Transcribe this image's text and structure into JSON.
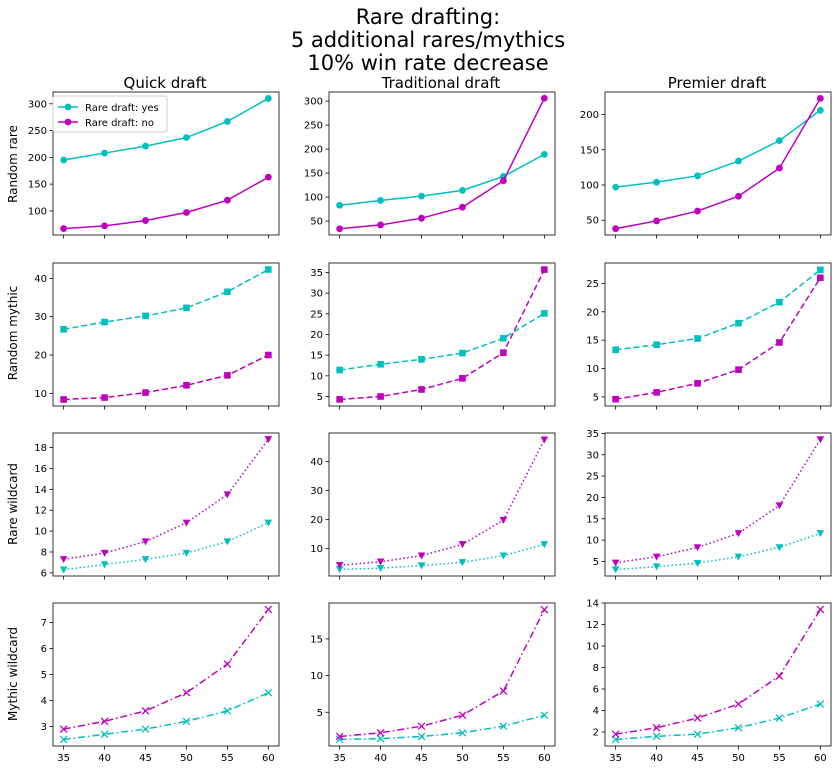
{
  "figure": {
    "title_lines": [
      "Rare drafting:",
      "5 additional rares/mythics",
      "10% win rate decrease"
    ],
    "column_titles": [
      "Quick draft",
      "Traditional draft",
      "Premier draft"
    ],
    "row_labels": [
      "Random rare",
      "Random mythic",
      "Rare wildcard",
      "Mythic wildcard"
    ]
  },
  "legend": {
    "location": "upper-left of first panel",
    "entries": [
      {
        "label": "Rare draft: yes",
        "color": "#17becf"
      },
      {
        "label": "Rare draft: no",
        "color": "#bf00bf"
      }
    ]
  },
  "style": {
    "colors": {
      "yes": "#00bfbf",
      "no": "#bf00bf"
    },
    "rows": [
      {
        "marker": "circle",
        "dash": "solid"
      },
      {
        "marker": "square",
        "dash": "dashed"
      },
      {
        "marker": "triangle-down",
        "dash": "dotted"
      },
      {
        "marker": "x",
        "dash": "dashdot"
      }
    ]
  },
  "chart_data": [
    {
      "type": "line",
      "row": "Random rare",
      "column": "Quick draft",
      "x": [
        35,
        40,
        45,
        50,
        55,
        60
      ],
      "series": [
        {
          "name": "Rare draft: yes",
          "values": [
            195,
            208,
            221,
            237,
            267,
            310
          ]
        },
        {
          "name": "Rare draft: no",
          "values": [
            67,
            72,
            82,
            97,
            120,
            163
          ]
        }
      ],
      "ylim": [
        55,
        322
      ],
      "yticks": [
        100,
        150,
        200,
        250,
        300
      ]
    },
    {
      "type": "line",
      "row": "Random rare",
      "column": "Traditional draft",
      "x": [
        35,
        40,
        45,
        50,
        55,
        60
      ],
      "series": [
        {
          "name": "Rare draft: yes",
          "values": [
            83,
            93,
            102,
            114,
            143,
            189
          ]
        },
        {
          "name": "Rare draft: no",
          "values": [
            34,
            42,
            56,
            79,
            134,
            306
          ]
        }
      ],
      "ylim": [
        21,
        319
      ],
      "yticks": [
        50,
        100,
        150,
        200,
        250,
        300
      ]
    },
    {
      "type": "line",
      "row": "Random rare",
      "column": "Premier draft",
      "x": [
        35,
        40,
        45,
        50,
        55,
        60
      ],
      "series": [
        {
          "name": "Rare draft: yes",
          "values": [
            97,
            104,
            113,
            134,
            163,
            206
          ]
        },
        {
          "name": "Rare draft: no",
          "values": [
            38,
            49,
            63,
            84,
            124,
            223
          ]
        }
      ],
      "ylim": [
        29,
        232
      ],
      "yticks": [
        50,
        100,
        150,
        200
      ]
    },
    {
      "type": "line",
      "row": "Random mythic",
      "column": "Quick draft",
      "x": [
        35,
        40,
        45,
        50,
        55,
        60
      ],
      "series": [
        {
          "name": "Rare draft: yes",
          "values": [
            26.7,
            28.6,
            30.2,
            32.3,
            36.5,
            42.3
          ]
        },
        {
          "name": "Rare draft: no",
          "values": [
            8.4,
            8.9,
            10.2,
            12.1,
            14.7,
            20.0
          ]
        }
      ],
      "ylim": [
        6.7,
        44.0
      ],
      "yticks": [
        10,
        20,
        30,
        40
      ]
    },
    {
      "type": "line",
      "row": "Random mythic",
      "column": "Traditional draft",
      "x": [
        35,
        40,
        45,
        50,
        55,
        60
      ],
      "series": [
        {
          "name": "Rare draft: yes",
          "values": [
            11.4,
            12.8,
            14.0,
            15.5,
            19.1,
            25.1
          ]
        },
        {
          "name": "Rare draft: no",
          "values": [
            4.3,
            5.0,
            6.7,
            9.4,
            15.6,
            35.7
          ]
        }
      ],
      "ylim": [
        2.7,
        37.3
      ],
      "yticks": [
        5,
        10,
        15,
        20,
        25,
        30,
        35
      ]
    },
    {
      "type": "line",
      "row": "Random mythic",
      "column": "Premier draft",
      "x": [
        35,
        40,
        45,
        50,
        55,
        60
      ],
      "series": [
        {
          "name": "Rare draft: yes",
          "values": [
            13.3,
            14.2,
            15.3,
            18.0,
            21.7,
            27.4
          ]
        },
        {
          "name": "Rare draft: no",
          "values": [
            4.6,
            5.8,
            7.4,
            9.8,
            14.6,
            26.0
          ]
        }
      ],
      "ylim": [
        3.4,
        28.6
      ],
      "yticks": [
        5,
        10,
        15,
        20,
        25
      ]
    },
    {
      "type": "line",
      "row": "Rare wildcard",
      "column": "Quick draft",
      "x": [
        35,
        40,
        45,
        50,
        55,
        60
      ],
      "series": [
        {
          "name": "Rare draft: yes",
          "values": [
            6.3,
            6.8,
            7.3,
            7.9,
            9.0,
            10.8
          ]
        },
        {
          "name": "Rare draft: no",
          "values": [
            7.3,
            7.9,
            9.0,
            10.8,
            13.5,
            18.8
          ]
        }
      ],
      "ylim": [
        5.7,
        19.4
      ],
      "yticks": [
        6,
        8,
        10,
        12,
        14,
        16,
        18
      ]
    },
    {
      "type": "line",
      "row": "Rare wildcard",
      "column": "Traditional draft",
      "x": [
        35,
        40,
        45,
        50,
        55,
        60
      ],
      "series": [
        {
          "name": "Rare draft: yes",
          "values": [
            2.9,
            3.3,
            4.2,
            5.3,
            7.6,
            11.5
          ]
        },
        {
          "name": "Rare draft: no",
          "values": [
            4.3,
            5.5,
            7.6,
            11.5,
            19.8,
            47.5
          ]
        }
      ],
      "ylim": [
        0.6,
        49.8
      ],
      "yticks": [
        10,
        20,
        30,
        40
      ]
    },
    {
      "type": "line",
      "row": "Rare wildcard",
      "column": "Premier draft",
      "x": [
        35,
        40,
        45,
        50,
        55,
        60
      ],
      "series": [
        {
          "name": "Rare draft: yes",
          "values": [
            3.1,
            3.8,
            4.6,
            6.1,
            8.3,
            11.6
          ]
        },
        {
          "name": "Rare draft: no",
          "values": [
            4.7,
            6.1,
            8.3,
            11.6,
            18.1,
            33.6
          ]
        }
      ],
      "ylim": [
        1.6,
        35.1
      ],
      "yticks": [
        5,
        10,
        15,
        20,
        25,
        30,
        35
      ]
    },
    {
      "type": "line",
      "row": "Mythic wildcard",
      "column": "Quick draft",
      "x": [
        35,
        40,
        45,
        50,
        55,
        60
      ],
      "series": [
        {
          "name": "Rare draft: yes",
          "values": [
            2.5,
            2.7,
            2.9,
            3.2,
            3.6,
            4.3
          ]
        },
        {
          "name": "Rare draft: no",
          "values": [
            2.9,
            3.2,
            3.6,
            4.3,
            5.4,
            7.5
          ]
        }
      ],
      "ylim": [
        2.25,
        7.75
      ],
      "yticks": [
        3,
        4,
        5,
        6,
        7
      ]
    },
    {
      "type": "line",
      "row": "Mythic wildcard",
      "column": "Traditional draft",
      "x": [
        35,
        40,
        45,
        50,
        55,
        60
      ],
      "series": [
        {
          "name": "Rare draft: yes",
          "values": [
            1.3,
            1.4,
            1.7,
            2.2,
            3.1,
            4.6
          ]
        },
        {
          "name": "Rare draft: no",
          "values": [
            1.7,
            2.2,
            3.1,
            4.6,
            7.9,
            19.0
          ]
        }
      ],
      "ylim": [
        0.4,
        19.9
      ],
      "yticks": [
        5,
        10,
        15
      ]
    },
    {
      "type": "line",
      "row": "Mythic wildcard",
      "column": "Premier draft",
      "x": [
        35,
        40,
        45,
        50,
        55,
        60
      ],
      "series": [
        {
          "name": "Rare draft: yes",
          "values": [
            1.3,
            1.6,
            1.8,
            2.4,
            3.3,
            4.6
          ]
        },
        {
          "name": "Rare draft: no",
          "values": [
            1.8,
            2.4,
            3.3,
            4.6,
            7.2,
            13.4
          ]
        }
      ],
      "ylim": [
        0.7,
        14.0
      ],
      "yticks": [
        2,
        4,
        6,
        8,
        10,
        12,
        14
      ]
    }
  ],
  "xaxis": {
    "ticks": [
      35,
      40,
      45,
      50,
      55,
      60
    ],
    "xlim": [
      33.7,
      61.3
    ]
  }
}
